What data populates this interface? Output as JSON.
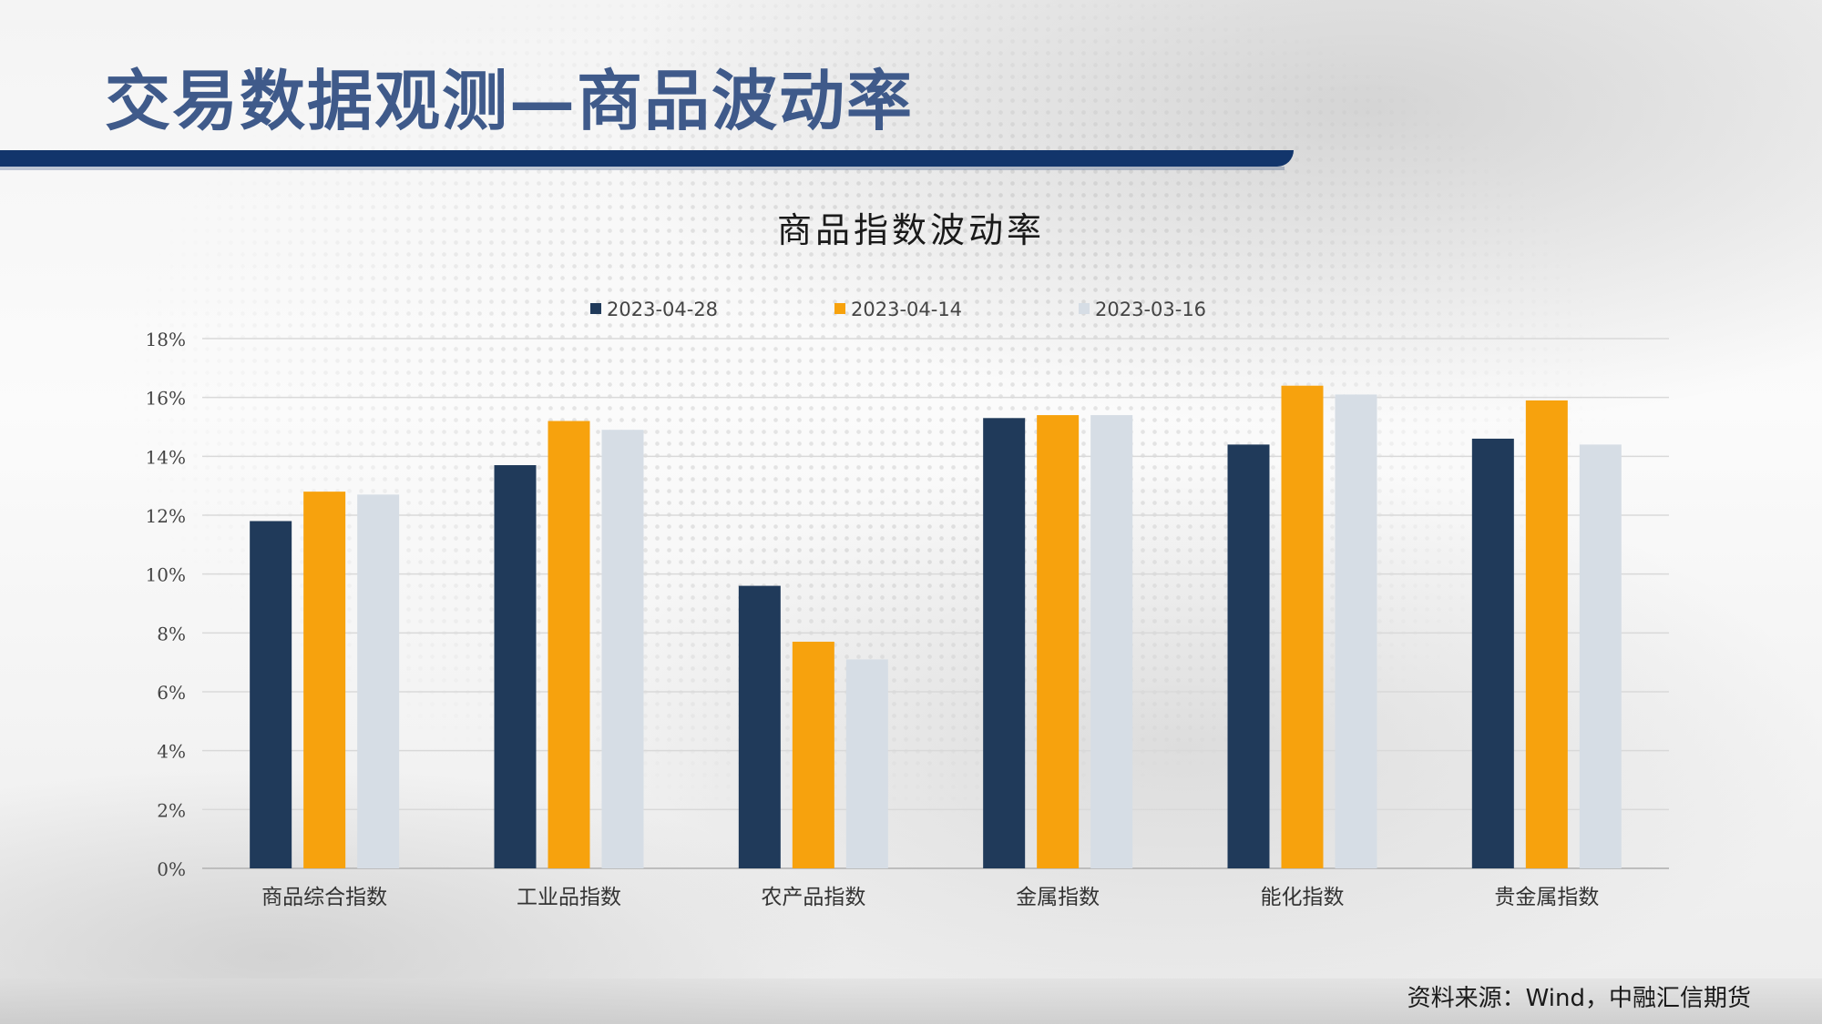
{
  "page": {
    "title": "交易数据观测—商品波动率",
    "source": "资料来源：Wind，中融汇信期货"
  },
  "chart_data": {
    "type": "bar",
    "title": "商品指数波动率",
    "categories": [
      "商品综合指数",
      "工业品指数",
      "农产品指数",
      "金属指数",
      "能化指数",
      "贵金属指数"
    ],
    "series": [
      {
        "name": "2023-04-28",
        "color": "#203a5a",
        "values": [
          11.8,
          13.7,
          9.6,
          15.3,
          14.4,
          14.6
        ]
      },
      {
        "name": "2023-04-14",
        "color": "#f7a20d",
        "values": [
          12.8,
          15.2,
          7.7,
          15.4,
          16.4,
          15.9
        ]
      },
      {
        "name": "2023-03-16",
        "color": "#d6dde5",
        "values": [
          12.7,
          14.9,
          7.1,
          15.4,
          16.1,
          14.4
        ]
      }
    ],
    "ylim": [
      0,
      18
    ],
    "ytick_values": [
      0,
      2,
      4,
      6,
      8,
      10,
      12,
      14,
      16,
      18
    ],
    "ytick_labels": [
      "0%",
      "2%",
      "4%",
      "6%",
      "8%",
      "10%",
      "12%",
      "14%",
      "16%",
      "18%"
    ],
    "grid": true,
    "legend": "top"
  }
}
